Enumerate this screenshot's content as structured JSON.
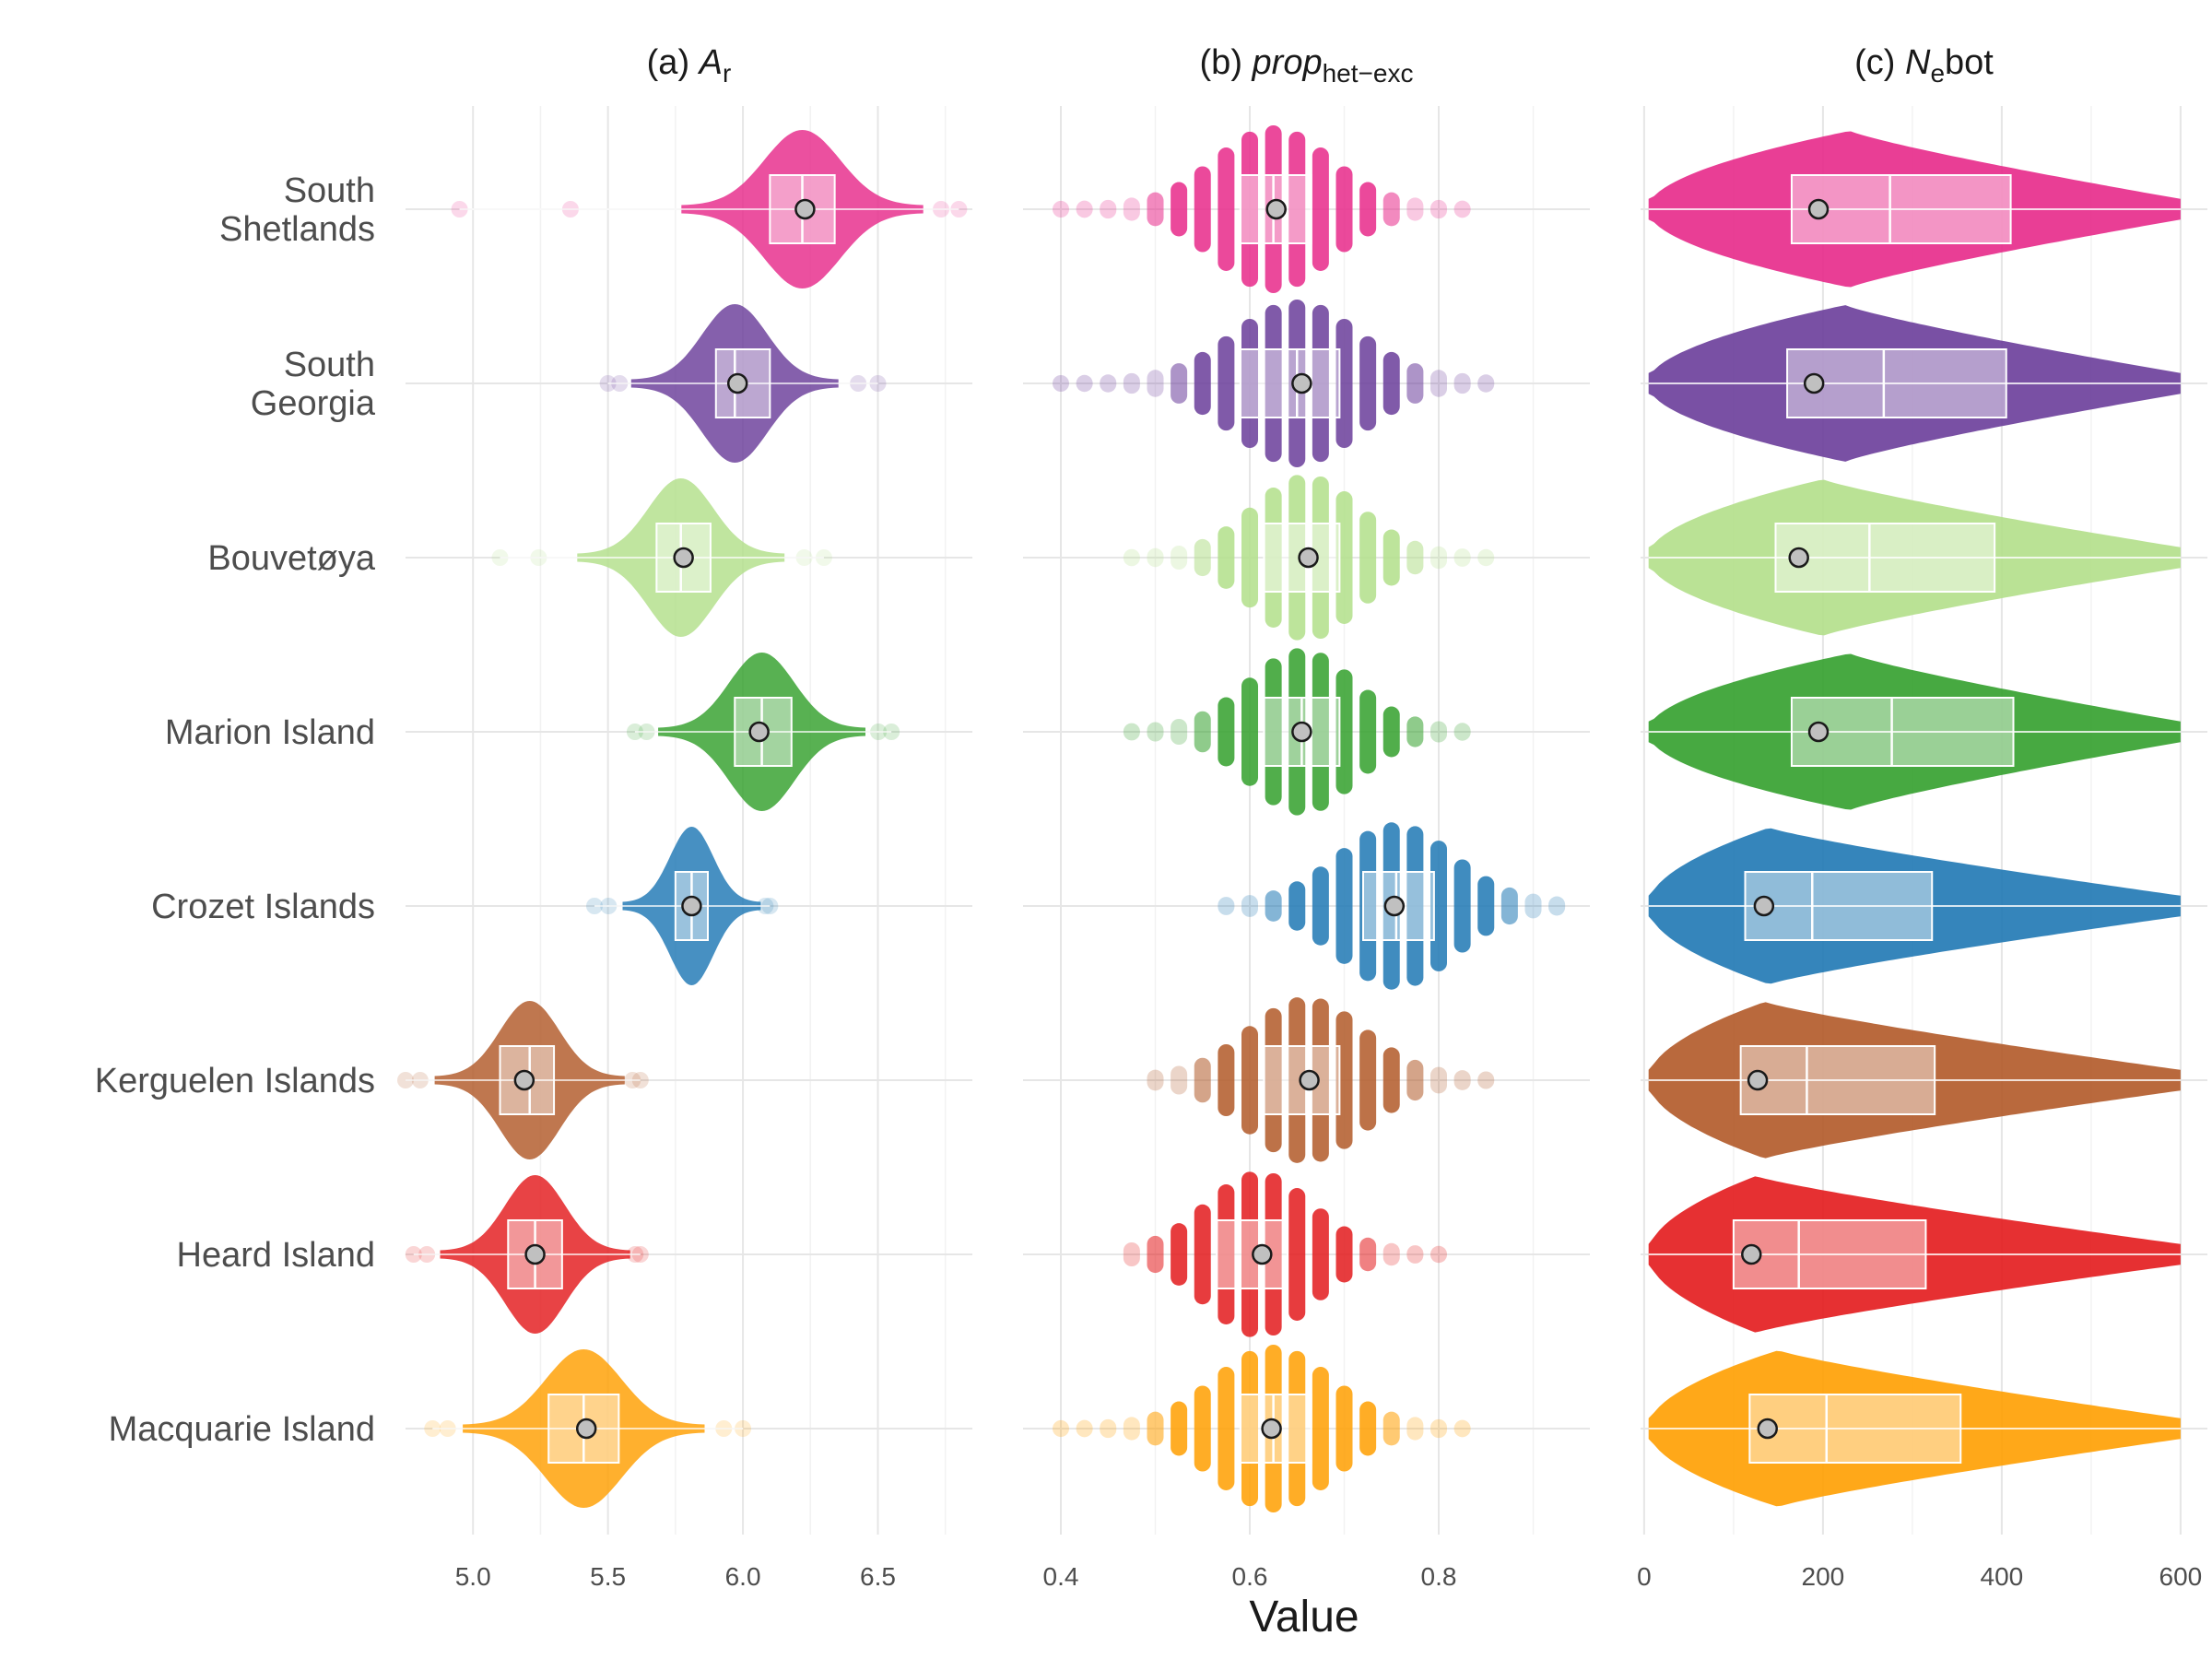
{
  "chart_data": {
    "type": "violin-box-point",
    "xlabel": "Value",
    "categories": [
      "South\nShetlands",
      "South\nGeorgia",
      "Bouvetøya",
      "Marion Island",
      "Crozet Islands",
      "Kerguelen Islands",
      "Heard Island",
      "Macquarie Island"
    ],
    "colors": [
      "#e7298a",
      "#6a3d9a",
      "#b2df8a",
      "#33a02c",
      "#1f78b4",
      "#b15928",
      "#e31a1c",
      "#ff9f00"
    ],
    "panels": [
      {
        "title_prefix": "(a) ",
        "title_main": "A",
        "title_sub": "r",
        "title_suffix": "",
        "xlim": [
          4.75,
          6.85
        ],
        "ticks": [
          5.0,
          5.5,
          6.0,
          6.5
        ],
        "tick_labels": [
          "5.0",
          "5.5",
          "6.0",
          "6.5"
        ],
        "style": "smooth",
        "series": [
          {
            "min": 4.95,
            "q1": 6.1,
            "median": 6.22,
            "q3": 6.34,
            "max": 6.8,
            "mean": 6.23,
            "spread": 0.14
          },
          {
            "min": 5.5,
            "q1": 5.9,
            "median": 5.97,
            "q3": 6.1,
            "max": 6.5,
            "mean": 5.98,
            "spread": 0.12
          },
          {
            "min": 5.1,
            "q1": 5.68,
            "median": 5.77,
            "q3": 5.88,
            "max": 6.3,
            "mean": 5.78,
            "spread": 0.12
          },
          {
            "min": 5.6,
            "q1": 5.97,
            "median": 6.07,
            "q3": 6.18,
            "max": 6.55,
            "mean": 6.06,
            "spread": 0.12
          },
          {
            "min": 5.45,
            "q1": 5.75,
            "median": 5.81,
            "q3": 5.87,
            "max": 6.1,
            "mean": 5.81,
            "spread": 0.08
          },
          {
            "min": 4.75,
            "q1": 5.1,
            "median": 5.21,
            "q3": 5.3,
            "max": 5.62,
            "mean": 5.19,
            "spread": 0.11
          },
          {
            "min": 4.78,
            "q1": 5.13,
            "median": 5.23,
            "q3": 5.33,
            "max": 5.62,
            "mean": 5.23,
            "spread": 0.11
          },
          {
            "min": 4.85,
            "q1": 5.28,
            "median": 5.41,
            "q3": 5.54,
            "max": 6.0,
            "mean": 5.42,
            "spread": 0.14
          }
        ]
      },
      {
        "title_prefix": "(b) ",
        "title_main": "prop",
        "title_sub": "het−exc",
        "title_suffix": "",
        "xlim": [
          0.36,
          0.96
        ],
        "ticks": [
          0.4,
          0.6,
          0.8
        ],
        "tick_labels": [
          "0.4",
          "0.6",
          "0.8"
        ],
        "style": "discrete",
        "series": [
          {
            "min": 0.4,
            "q1": 0.59,
            "median": 0.625,
            "q3": 0.665,
            "max": 0.83,
            "mean": 0.628,
            "spread": 0.06
          },
          {
            "min": 0.4,
            "q1": 0.59,
            "median": 0.65,
            "q3": 0.695,
            "max": 0.85,
            "mean": 0.655,
            "spread": 0.065
          },
          {
            "min": 0.46,
            "q1": 0.615,
            "median": 0.66,
            "q3": 0.695,
            "max": 0.87,
            "mean": 0.662,
            "spread": 0.055
          },
          {
            "min": 0.46,
            "q1": 0.615,
            "median": 0.655,
            "q3": 0.695,
            "max": 0.83,
            "mean": 0.655,
            "spread": 0.055
          },
          {
            "min": 0.56,
            "q1": 0.72,
            "median": 0.755,
            "q3": 0.795,
            "max": 0.93,
            "mean": 0.753,
            "spread": 0.06
          },
          {
            "min": 0.48,
            "q1": 0.615,
            "median": 0.66,
            "q3": 0.695,
            "max": 0.87,
            "mean": 0.663,
            "spread": 0.06
          },
          {
            "min": 0.46,
            "q1": 0.565,
            "median": 0.61,
            "q3": 0.64,
            "max": 0.8,
            "mean": 0.613,
            "spread": 0.055
          },
          {
            "min": 0.38,
            "q1": 0.59,
            "median": 0.625,
            "q3": 0.665,
            "max": 0.83,
            "mean": 0.623,
            "spread": 0.06
          }
        ]
      },
      {
        "title_prefix": "(c) ",
        "title_main": "N",
        "title_sub": "e",
        "title_suffix": "bot",
        "xlim": [
          -4,
          630
        ],
        "ticks": [
          0,
          200,
          400,
          600
        ],
        "tick_labels": [
          "0",
          "200",
          "400",
          "600"
        ],
        "style": "skewed",
        "series": [
          {
            "min": 5,
            "q1": 165,
            "median": 275,
            "q3": 410,
            "max": 600,
            "mean": 195,
            "mode": 230
          },
          {
            "min": 5,
            "q1": 160,
            "median": 268,
            "q3": 405,
            "max": 600,
            "mean": 190,
            "mode": 225
          },
          {
            "min": 5,
            "q1": 147,
            "median": 252,
            "q3": 392,
            "max": 600,
            "mean": 173,
            "mode": 200
          },
          {
            "min": 5,
            "q1": 165,
            "median": 277,
            "q3": 413,
            "max": 600,
            "mean": 195,
            "mode": 230
          },
          {
            "min": 5,
            "q1": 113,
            "median": 188,
            "q3": 322,
            "max": 600,
            "mean": 134,
            "mode": 140
          },
          {
            "min": 5,
            "q1": 108,
            "median": 182,
            "q3": 325,
            "max": 600,
            "mean": 127,
            "mode": 135
          },
          {
            "min": 5,
            "q1": 100,
            "median": 173,
            "q3": 315,
            "max": 600,
            "mean": 120,
            "mode": 125
          },
          {
            "min": 5,
            "q1": 118,
            "median": 204,
            "q3": 354,
            "max": 600,
            "mean": 138,
            "mode": 150
          }
        ]
      }
    ]
  }
}
